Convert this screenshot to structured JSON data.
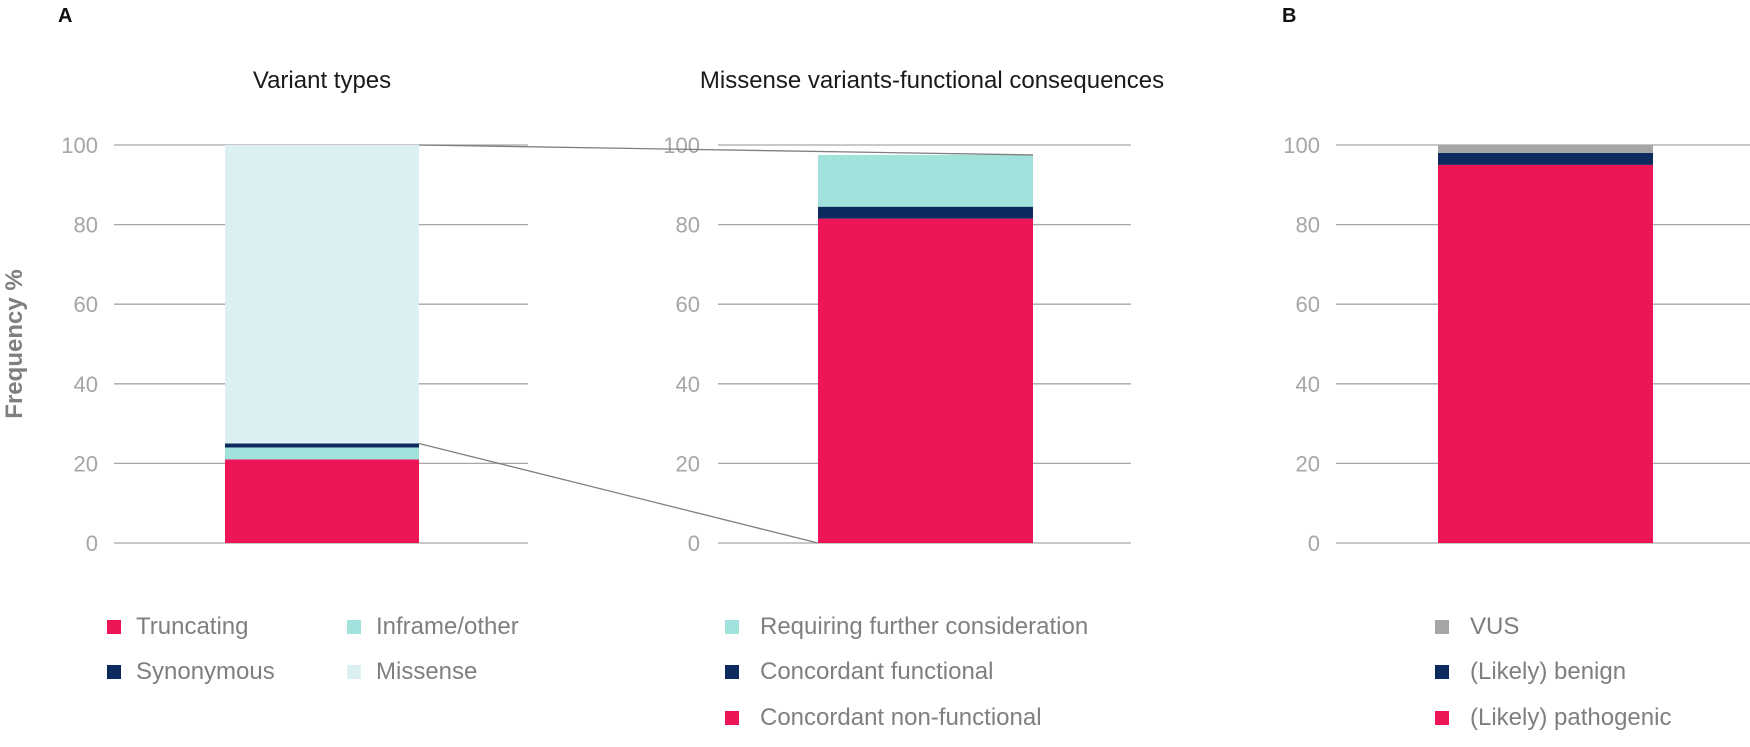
{
  "panel_labels": [
    "A",
    "B"
  ],
  "y_axis_label": "Frequency %",
  "colors": {
    "truncating": "#ee1556",
    "inframe": "#a2e2dd",
    "synonymous": "#0c2a5e",
    "missense": "#dcf0f3",
    "vus": "#a6a6a6",
    "grid": "#a6a6a6",
    "tick": "#a6a6a6"
  },
  "chart_data": [
    {
      "type": "bar",
      "stacked": true,
      "title": "Variant types",
      "ylabel": "Frequency %",
      "ylim": [
        0,
        100
      ],
      "yticks": [
        0,
        20,
        40,
        60,
        80,
        100
      ],
      "grid": true,
      "categories": [
        ""
      ],
      "series": [
        {
          "name": "Truncating",
          "values": [
            21
          ],
          "color": "#ee1556"
        },
        {
          "name": "Inframe/other",
          "values": [
            3
          ],
          "color": "#a2e2dd"
        },
        {
          "name": "Synonymous",
          "values": [
            1
          ],
          "color": "#0c2a5e"
        },
        {
          "name": "Missense",
          "values": [
            75
          ],
          "color": "#dcf0f3"
        }
      ],
      "legend": [
        [
          "Truncating",
          "Inframe/other"
        ],
        [
          "Synonymous",
          "Missense"
        ]
      ],
      "legend_placement": "bottom"
    },
    {
      "type": "bar",
      "stacked": true,
      "title": "Missense variants-functional consequences",
      "ylim": [
        0,
        100
      ],
      "yticks": [
        0,
        20,
        40,
        60,
        80,
        100
      ],
      "grid": true,
      "categories": [
        ""
      ],
      "series": [
        {
          "name": "Concordant non-functional",
          "values": [
            81.5
          ],
          "color": "#ee1556"
        },
        {
          "name": "Concordant functional",
          "values": [
            3
          ],
          "color": "#0c2a5e"
        },
        {
          "name": "Requiring further consideration",
          "values": [
            13
          ],
          "color": "#a2e2dd"
        }
      ],
      "legend": [
        [
          "Requiring further consideration"
        ],
        [
          "Concordant functional"
        ],
        [
          "Concordant non-functional"
        ]
      ],
      "legend_placement": "bottom"
    },
    {
      "type": "bar",
      "stacked": true,
      "title": "",
      "ylim": [
        0,
        100
      ],
      "yticks": [
        0,
        20,
        40,
        60,
        80,
        100
      ],
      "grid": true,
      "categories": [
        ""
      ],
      "series": [
        {
          "name": "(Likely) pathogenic",
          "values": [
            95
          ],
          "color": "#ee1556"
        },
        {
          "name": "(Likely) benign",
          "values": [
            3
          ],
          "color": "#0c2a5e"
        },
        {
          "name": "VUS",
          "values": [
            2
          ],
          "color": "#a6a6a6"
        }
      ],
      "legend": [
        [
          "VUS"
        ],
        [
          "(Likely) benign"
        ],
        [
          "(Likely) pathogenic"
        ]
      ],
      "legend_placement": "bottom"
    }
  ]
}
